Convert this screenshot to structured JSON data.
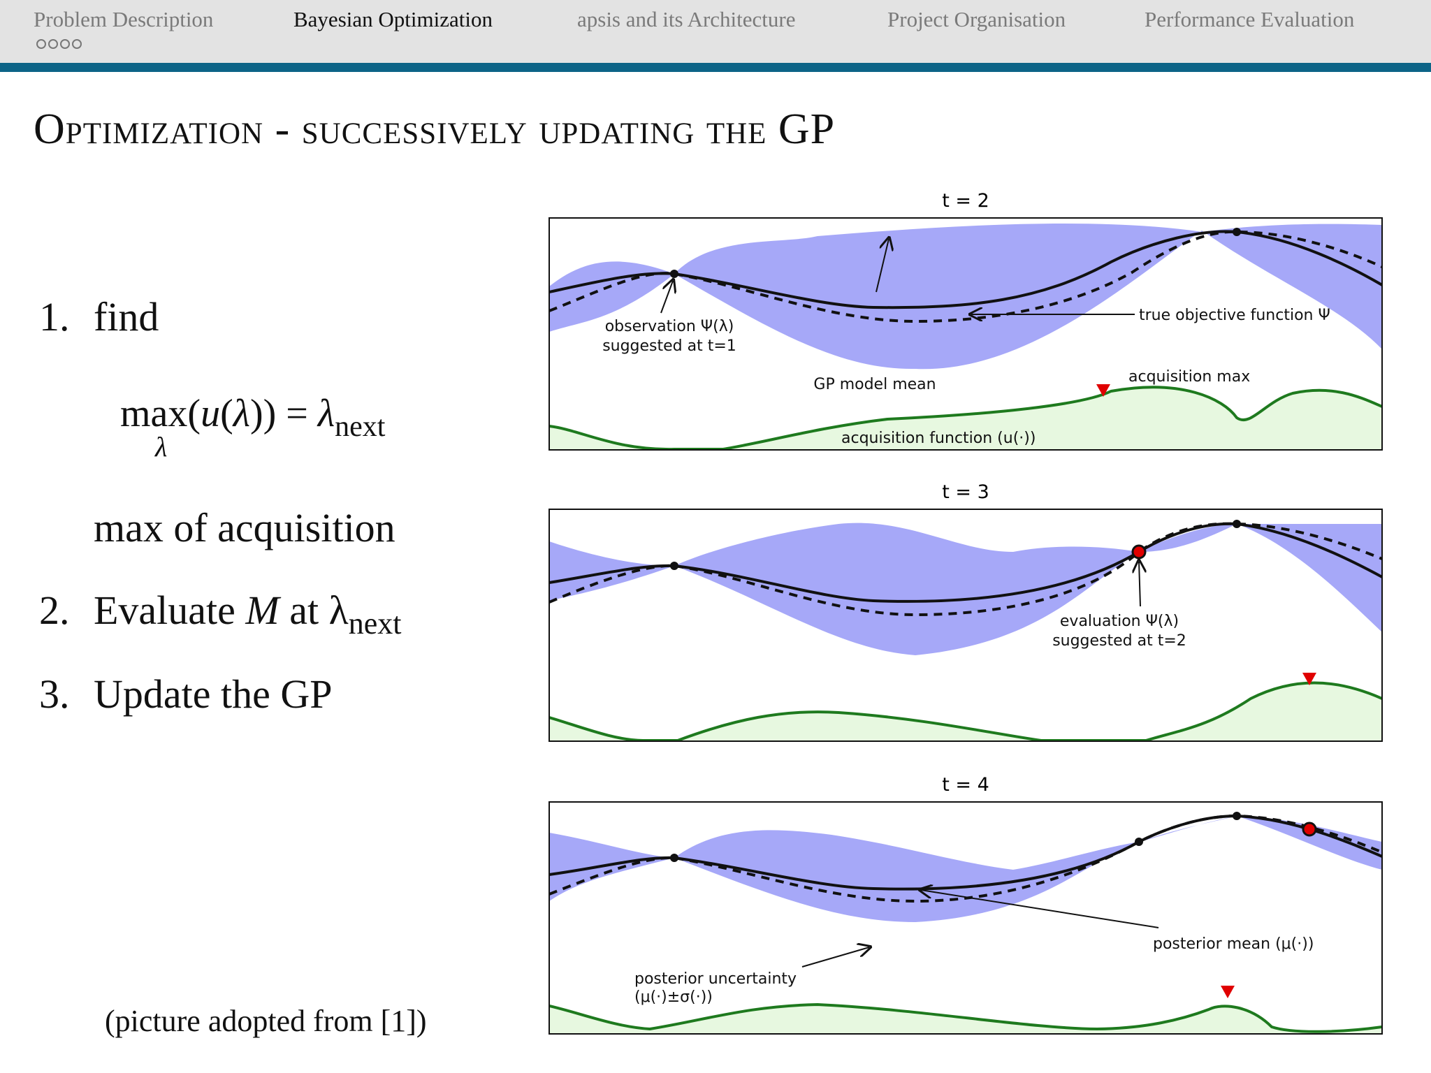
{
  "nav": {
    "sections": [
      "Problem Description",
      "Bayesian Optimization",
      "apsis and its Architecture",
      "Project Organisation",
      "Performance Evaluation"
    ],
    "active_index": 1
  },
  "title": {
    "lead": "Optimization - ",
    "rest": "successively updating the GP"
  },
  "steps": {
    "s1_num": "1.",
    "s1_text": "find",
    "formula_max": "max",
    "formula_u": "u",
    "formula_lambda": "λ",
    "formula_equals": "=",
    "formula_next_sub": "next",
    "formula_under": "λ",
    "s1_note": "max of acquisition",
    "s2_num": "2.",
    "s2_text_a": "Evaluate ",
    "s2_M": "M",
    "s2_text_b": " at λ",
    "s2_sub": "next",
    "s3_num": "3.",
    "s3_text": "Update the GP"
  },
  "caption": "(picture adopted from  [1])",
  "panels": {
    "p1": {
      "title": "t = 2",
      "ann_obs_1": "observation Ψ(λ)",
      "ann_obs_2": "suggested at t=1",
      "ann_true": "true objective function Ψ",
      "ann_mean": "GP model mean",
      "ann_acqmax": "acquisition max",
      "ann_acqfn": "acquisition function (u(·))"
    },
    "p2": {
      "title": "t = 3",
      "ann_eval_1": "evaluation Ψ(λ)",
      "ann_eval_2": "suggested at t=2"
    },
    "p3": {
      "title": "t = 4",
      "ann_post_mean": "posterior mean (μ(·))",
      "ann_post_unc_1": "posterior uncertainty",
      "ann_post_unc_2": "(μ(·)±σ(·))"
    }
  },
  "colors": {
    "accent_bar": "#0d6487",
    "uncertainty_band": "#a6a8f8",
    "acquisition_line": "#1e7a1e",
    "acquisition_fill": "#e7f8e0",
    "marker_red": "#e00000"
  }
}
